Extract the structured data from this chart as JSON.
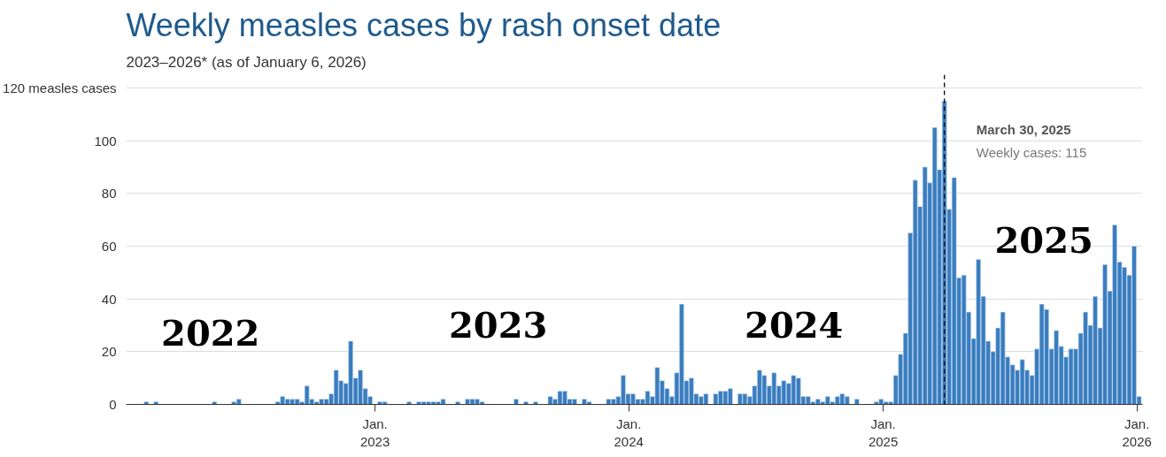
{
  "chart_data": {
    "type": "bar",
    "title": "Weekly measles cases by rash onset date",
    "subtitle": "2023–2026* (as of January 6, 2026)",
    "x": [
      "2022-02-06",
      "2022-02-20",
      "2022-05-15",
      "2022-06-12",
      "2022-06-19",
      "2022-08-14",
      "2022-08-21",
      "2022-08-28",
      "2022-09-04",
      "2022-09-11",
      "2022-09-18",
      "2022-09-25",
      "2022-10-02",
      "2022-10-09",
      "2022-10-16",
      "2022-10-23",
      "2022-10-30",
      "2022-11-06",
      "2022-11-13",
      "2022-11-20",
      "2022-11-27",
      "2022-12-04",
      "2022-12-11",
      "2022-12-18",
      "2022-12-25",
      "2023-01-08",
      "2023-01-15",
      "2023-02-19",
      "2023-03-05",
      "2023-03-12",
      "2023-03-19",
      "2023-03-26",
      "2023-04-02",
      "2023-04-09",
      "2023-04-30",
      "2023-05-14",
      "2023-05-21",
      "2023-05-28",
      "2023-06-04",
      "2023-07-23",
      "2023-08-06",
      "2023-08-20",
      "2023-09-10",
      "2023-09-17",
      "2023-09-24",
      "2023-10-01",
      "2023-10-08",
      "2023-10-15",
      "2023-10-29",
      "2023-11-05",
      "2023-12-03",
      "2023-12-10",
      "2023-12-17",
      "2023-12-24",
      "2023-12-31",
      "2024-01-07",
      "2024-01-14",
      "2024-01-21",
      "2024-01-28",
      "2024-02-04",
      "2024-02-11",
      "2024-02-18",
      "2024-02-25",
      "2024-03-03",
      "2024-03-10",
      "2024-03-17",
      "2024-03-24",
      "2024-03-31",
      "2024-04-07",
      "2024-04-14",
      "2024-04-21",
      "2024-05-05",
      "2024-05-12",
      "2024-05-19",
      "2024-05-26",
      "2024-06-09",
      "2024-06-16",
      "2024-06-23",
      "2024-06-30",
      "2024-07-07",
      "2024-07-14",
      "2024-07-21",
      "2024-07-28",
      "2024-08-04",
      "2024-08-11",
      "2024-08-18",
      "2024-08-25",
      "2024-09-01",
      "2024-09-08",
      "2024-09-15",
      "2024-09-22",
      "2024-09-29",
      "2024-10-06",
      "2024-10-13",
      "2024-10-20",
      "2024-10-27",
      "2024-11-03",
      "2024-11-10",
      "2024-11-24",
      "2024-12-22",
      "2024-12-29",
      "2025-01-05",
      "2025-01-12",
      "2025-01-19",
      "2025-01-26",
      "2025-02-02",
      "2025-02-09",
      "2025-02-16",
      "2025-02-23",
      "2025-03-02",
      "2025-03-09",
      "2025-03-16",
      "2025-03-23",
      "2025-03-30",
      "2025-04-06",
      "2025-04-13",
      "2025-04-20",
      "2025-04-27",
      "2025-05-04",
      "2025-05-11",
      "2025-05-18",
      "2025-05-25",
      "2025-06-01",
      "2025-06-08",
      "2025-06-15",
      "2025-06-22",
      "2025-06-29",
      "2025-07-06",
      "2025-07-13",
      "2025-07-20",
      "2025-07-27",
      "2025-08-03",
      "2025-08-10",
      "2025-08-17",
      "2025-08-24",
      "2025-08-31",
      "2025-09-07",
      "2025-09-14",
      "2025-09-21",
      "2025-09-28",
      "2025-10-05",
      "2025-10-12",
      "2025-10-19",
      "2025-10-26",
      "2025-11-02",
      "2025-11-09",
      "2025-11-16",
      "2025-11-23",
      "2025-11-30",
      "2025-12-07",
      "2025-12-14",
      "2025-12-21",
      "2025-12-28",
      "2026-01-04"
    ],
    "values": [
      1,
      1,
      1,
      1,
      2,
      1,
      3,
      2,
      2,
      2,
      1,
      7,
      2,
      1,
      2,
      2,
      4,
      13,
      9,
      8,
      24,
      10,
      13,
      6,
      3,
      1,
      1,
      1,
      1,
      1,
      1,
      1,
      1,
      2,
      1,
      2,
      2,
      2,
      1,
      2,
      1,
      1,
      3,
      2,
      5,
      5,
      2,
      2,
      2,
      1,
      2,
      2,
      3,
      11,
      4,
      4,
      2,
      2,
      5,
      3,
      14,
      9,
      6,
      3,
      12,
      38,
      9,
      10,
      4,
      3,
      4,
      4,
      5,
      5,
      6,
      4,
      4,
      3,
      7,
      13,
      11,
      7,
      12,
      7,
      9,
      8,
      11,
      10,
      3,
      3,
      1,
      2,
      1,
      3,
      1,
      3,
      4,
      3,
      2,
      1,
      2,
      1,
      1,
      11,
      19,
      27,
      65,
      85,
      75,
      90,
      84,
      105,
      89,
      115,
      74,
      86,
      48,
      49,
      35,
      25,
      55,
      41,
      24,
      20,
      29,
      35,
      18,
      15,
      13,
      17,
      13,
      11,
      21,
      38,
      36,
      21,
      28,
      22,
      18,
      21,
      21,
      27,
      35,
      30,
      41,
      29,
      53,
      43,
      68,
      54,
      52,
      49,
      60,
      3
    ],
    "color": "#3a7dbf",
    "xlim": [
      "2022-01-08",
      "2026-01-09"
    ],
    "xticks": [
      {
        "value": "2023-01-01",
        "label": "Jan.\n2023"
      },
      {
        "value": "2024-01-01",
        "label": "Jan.\n2024"
      },
      {
        "value": "2025-01-01",
        "label": "Jan.\n2025"
      },
      {
        "value": "2026-01-01",
        "label": "Jan.\n2026"
      }
    ],
    "ylim": [
      0,
      125
    ],
    "yticks": [
      0,
      20,
      40,
      60,
      80,
      100,
      {
        "value": 120,
        "label": "120 measles cases"
      }
    ],
    "grid": "y",
    "ref_lines": [
      {
        "axis": "x",
        "value": "2025-03-30",
        "color": "#000000",
        "line_style": "dashed"
      }
    ],
    "annotations": [
      "2022",
      "2023",
      "2024",
      "2025",
      "March 30, 2025",
      "Weekly cases: 115"
    ]
  }
}
